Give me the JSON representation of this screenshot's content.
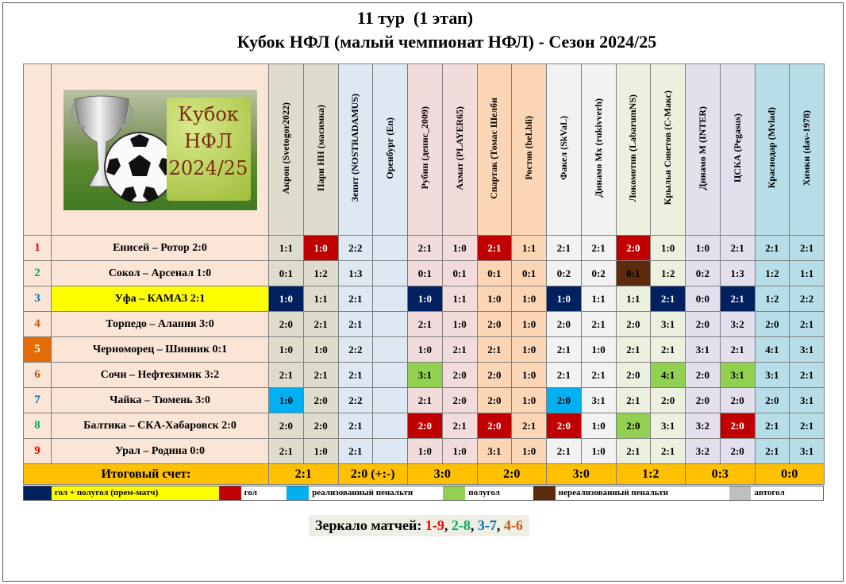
{
  "title_line1": "11 тур  (1 этап)",
  "title_line2": "Кубок НФЛ (малый чемпионат НФЛ) - Сезон 2024/25",
  "logo_text": "Кубок\nНФЛ\n2024/25",
  "colors": {
    "num_bg": "#fbe5d6",
    "match_bg": "#fbe5d6",
    "highlight_yellow": "#ffff00",
    "highlight_orange": "#e36c09",
    "total_bg": "#ffc000",
    "navy": "#002060",
    "red": "#c00000",
    "cyan": "#00b0f0",
    "green": "#92d050",
    "brown": "#5c2a0c",
    "grey": "#bfbfbf"
  },
  "teams": [
    {
      "name": "Акрон  (Svetogor2022)",
      "bg": "#dedccd"
    },
    {
      "name": "Пари НН (масимка)",
      "bg": "#dedccd"
    },
    {
      "name": "Зенит (NOSTRADAMUS)",
      "bg": "#dde8f3"
    },
    {
      "name": "Оренбург (En)",
      "bg": "#dde8f3"
    },
    {
      "name": "Рубин (денис_2009)",
      "bg": "#f1dcdb"
    },
    {
      "name": "Ахмат (PLAYER65)",
      "bg": "#f1dcdb"
    },
    {
      "name": "Спартак (Томас Шелби",
      "bg": "#fcd5b4"
    },
    {
      "name": "Ростов (beLbli)",
      "bg": "#fcd5b4"
    },
    {
      "name": "Факел (SkVaL)",
      "bg": "#f2f2f2"
    },
    {
      "name": "Динамо Мх (rukivverh)",
      "bg": "#f2f2f2"
    },
    {
      "name": "Локомотив (LabarumNS)",
      "bg": "#ebf1de"
    },
    {
      "name": "Крылья Советов (С-Макс)",
      "bg": "#ebf1de"
    },
    {
      "name": "Динамо М (INTER)",
      "bg": "#e4dfec"
    },
    {
      "name": "ЦСКА (Pegasus)",
      "bg": "#e4dfec"
    },
    {
      "name": "Краснодар (Mvlad)",
      "bg": "#b7dee8"
    },
    {
      "name": "Химки (dav-1978)",
      "bg": "#b7dee8"
    }
  ],
  "rows": [
    {
      "num": "1",
      "num_color": "#ff0000",
      "match": "Енисей – Ротор 2:0",
      "cells": [
        "1:1",
        "1:0",
        "2:2",
        "",
        "2:1",
        "1:0",
        "2:1",
        "1:1",
        "2:1",
        "2:1",
        "2:0",
        "1:0",
        "1:0",
        "2:1",
        "2:1",
        "2:1"
      ],
      "marks": {
        "1": "red",
        "6": "red",
        "10": "red"
      }
    },
    {
      "num": "2",
      "num_color": "#00b050",
      "match": "Сокол – Арсенал 1:0",
      "cells": [
        "0:1",
        "1:2",
        "1:3",
        "",
        "0:1",
        "0:1",
        "0:1",
        "0:1",
        "0:2",
        "0:2",
        "0:1",
        "1:2",
        "0:2",
        "1:3",
        "1:2",
        "1:1"
      ],
      "marks": {
        "10": "brown"
      }
    },
    {
      "num": "3",
      "num_color": "#0070c0",
      "match": "Уфа – КАМАЗ 2:1",
      "match_bg": "#ffff00",
      "cells": [
        "1:0",
        "1:1",
        "2:1",
        "",
        "1:0",
        "1:1",
        "1:0",
        "1:0",
        "1:0",
        "1:1",
        "1:1",
        "2:1",
        "0:0",
        "2:1",
        "1:2",
        "2:2"
      ],
      "marks": {
        "0": "navy",
        "4": "navy",
        "8": "navy",
        "11": "navy",
        "13": "navy"
      }
    },
    {
      "num": "4",
      "num_color": "#c55a11",
      "match": "Торпедо – Алания 3:0",
      "cells": [
        "2:0",
        "2:1",
        "2:1",
        "",
        "2:1",
        "1:0",
        "2:0",
        "1:0",
        "2:0",
        "2:1",
        "2:0",
        "3:1",
        "2:0",
        "3:2",
        "2:0",
        "2:1"
      ],
      "marks": {}
    },
    {
      "num": "5",
      "num_color": "#ffffff",
      "num_bg": "#e36c09",
      "match": "Черноморец – Шинник 0:1",
      "cells": [
        "1:0",
        "1:0",
        "2:2",
        "",
        "1:0",
        "2:1",
        "2:1",
        "1:0",
        "2:1",
        "1:0",
        "2:1",
        "2:1",
        "3:1",
        "2:1",
        "4:1",
        "3:1"
      ],
      "marks": {}
    },
    {
      "num": "6",
      "num_color": "#c55a11",
      "match": "Сочи – Нефтехимик 3:2",
      "cells": [
        "2:1",
        "2:1",
        "2:1",
        "",
        "3:1",
        "2:0",
        "2:0",
        "1:0",
        "2:1",
        "2:1",
        "2:0",
        "4:1",
        "2:0",
        "3:1",
        "3:1",
        "2:1"
      ],
      "marks": {
        "4": "green",
        "11": "green",
        "13": "green"
      }
    },
    {
      "num": "7",
      "num_color": "#0070c0",
      "match": "Чайка – Тюмень 3:0",
      "cells": [
        "1:0",
        "2:0",
        "2:2",
        "",
        "2:1",
        "2:0",
        "2:0",
        "1:0",
        "2:0",
        "3:1",
        "2:1",
        "2:0",
        "2:0",
        "2:0",
        "2:0",
        "3:1"
      ],
      "marks": {
        "0": "cyan",
        "8": "cyan"
      }
    },
    {
      "num": "8",
      "num_color": "#00b050",
      "match": "Балтика – СКА-Хабаровск 2:0",
      "cells": [
        "2:0",
        "2:0",
        "2:1",
        "",
        "2:0",
        "2:1",
        "2:0",
        "2:1",
        "2:0",
        "1:0",
        "2:0",
        "3:1",
        "3:2",
        "2:0",
        "2:1",
        "2:1"
      ],
      "marks": {
        "4": "red",
        "6": "red",
        "8": "red",
        "10": "green",
        "13": "red"
      }
    },
    {
      "num": "9",
      "num_color": "#ff0000",
      "match": "Урал – Родина 0:0",
      "cells": [
        "2:1",
        "1:0",
        "2:1",
        "",
        "1:0",
        "1:0",
        "3:1",
        "1:0",
        "2:1",
        "1:0",
        "2:1",
        "2:1",
        "3:2",
        "2:0",
        "2:1",
        "3:1"
      ],
      "marks": {}
    }
  ],
  "total": {
    "label": "Итоговый счет:",
    "scores": [
      "2:1",
      "2:0 (+:-)",
      "3:0",
      "2:0",
      "3:0",
      "1:2",
      "0:3",
      "0:0"
    ]
  },
  "legend": [
    {
      "color": "#002060",
      "label": "гол + полугол  (прем-матч)",
      "label_bg": "#ffff00"
    },
    {
      "color": "#c00000",
      "label": "гол"
    },
    {
      "color": "#00b0f0",
      "label": "реализованный  пенальти"
    },
    {
      "color": "#92d050",
      "label": "полугол"
    },
    {
      "color": "#5c2a0c",
      "label": "нереализованный  пенальти"
    },
    {
      "color": "#bfbfbf",
      "label": "автогол"
    }
  ],
  "mirror": {
    "label": "Зеркало матчей:",
    "pairs": [
      {
        "text": "1-9",
        "color": "#ff0000"
      },
      {
        "text": "2-8",
        "color": "#00b050"
      },
      {
        "text": "3-7",
        "color": "#0070c0"
      },
      {
        "text": "4-6",
        "color": "#c55a11"
      }
    ]
  }
}
